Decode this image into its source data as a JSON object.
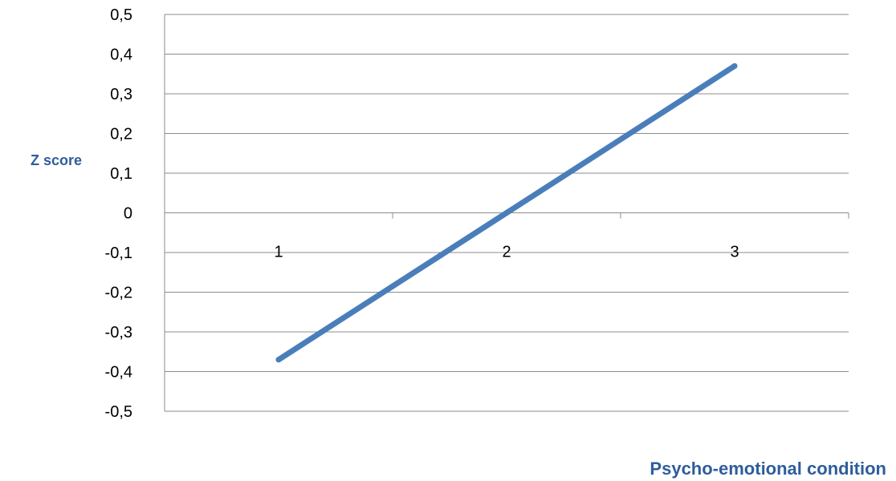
{
  "chart_data": {
    "type": "line",
    "title": "",
    "xlabel": "Psycho-emotional condition",
    "ylabel": "Z score",
    "categories": [
      "1",
      "2",
      "3"
    ],
    "series": [
      {
        "values": [
          -0.37,
          0.0,
          0.37
        ]
      }
    ],
    "ylim": [
      -0.5,
      0.5
    ],
    "y_ticks": [
      "0,5",
      "0,4",
      "0,3",
      "0,2",
      "0,1",
      "0",
      "-0,1",
      "-0,2",
      "-0,3",
      "-0,4",
      "-0,5"
    ],
    "y_tick_values": [
      0.5,
      0.4,
      0.3,
      0.2,
      0.1,
      0,
      -0.1,
      -0.2,
      -0.3,
      -0.4,
      -0.5
    ],
    "grid": true,
    "legend": false,
    "colors": {
      "line": "#4a7ebb",
      "grid": "#8c8c8c",
      "axis_title": "#2e5d9c"
    }
  }
}
